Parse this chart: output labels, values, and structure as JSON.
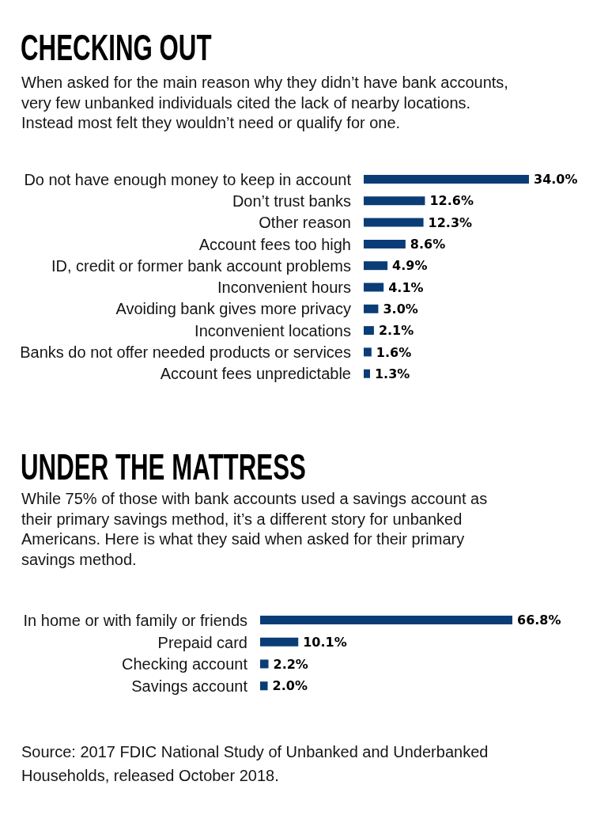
{
  "chart_data": [
    {
      "type": "bar",
      "orientation": "horizontal",
      "title": "CHECKING OUT",
      "subtitle": "When asked for the main reason why they didn’t have bank accounts, very few unbanked individuals cited the lack of nearby locations. Instead most felt they wouldn’t need or qualify for one.",
      "categories": [
        "Do not have enough money to keep in account",
        "Don’t trust banks",
        "Other reason",
        "Account fees too high",
        "ID, credit or former bank account problems",
        "Inconvenient hours",
        "Avoiding bank gives more privacy",
        "Inconvenient locations",
        "Banks do not offer needed products or services",
        "Account fees unpredictable"
      ],
      "values": [
        34.0,
        12.6,
        12.3,
        8.6,
        4.9,
        4.1,
        3.0,
        2.1,
        1.6,
        1.3
      ],
      "value_labels": [
        "34.0%",
        "12.6%",
        "12.3%",
        "8.6%",
        "4.9%",
        "4.1%",
        "3.0%",
        "2.1%",
        "1.6%",
        "1.3%"
      ],
      "color": "#0a3d76",
      "tick_labels": "y"
    },
    {
      "type": "bar",
      "orientation": "horizontal",
      "title": "UNDER THE MATTRESS",
      "subtitle": "While 75% of those with bank accounts used a savings account as their primary savings method, it’s a different story for unbanked Americans. Here is what they said when asked for their primary savings method.",
      "categories": [
        "In home or with family or friends",
        "Prepaid card",
        "Checking account",
        "Savings account"
      ],
      "values": [
        66.8,
        10.1,
        2.2,
        2.0
      ],
      "value_labels": [
        "66.8%",
        "10.1%",
        "2.2%",
        "2.0%"
      ],
      "color": "#0a3d76",
      "tick_labels": "y",
      "annotations": [
        "Source: 2017 FDIC National Study of Unbanked and Underbanked Households, released October 2018."
      ]
    }
  ]
}
